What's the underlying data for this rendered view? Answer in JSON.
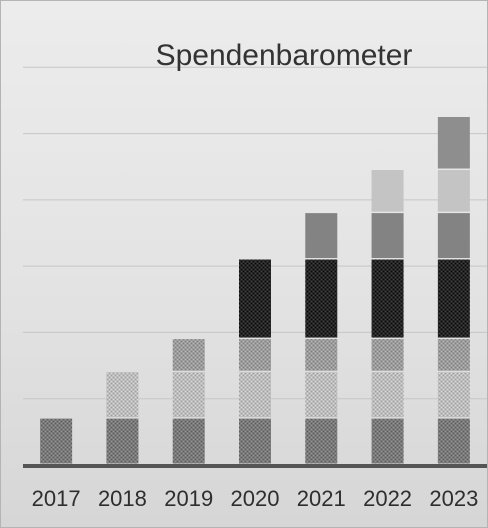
{
  "chart_data": {
    "type": "bar",
    "stacked": true,
    "title": "Spendenbarometer",
    "xlabel": "",
    "ylabel": "",
    "categories": [
      "2017",
      "2018",
      "2019",
      "2020",
      "2021",
      "2022",
      "2023"
    ],
    "ylim": [
      0,
      7
    ],
    "grid": true,
    "legend": "none",
    "y_tick_labels_shown": false,
    "series": [
      {
        "values": [
          0.7,
          0.7,
          0.7,
          0.7,
          0.7,
          0.7,
          0.7
        ],
        "color": "#7a7a7a",
        "pattern": "dots-medium"
      },
      {
        "values": [
          0,
          0.7,
          0.7,
          0.7,
          0.7,
          0.7,
          0.7
        ],
        "color": "#bdbdbd",
        "pattern": "dots-light"
      },
      {
        "values": [
          0,
          0,
          0.5,
          0.5,
          0.5,
          0.5,
          0.5
        ],
        "color": "#9c9c9c",
        "pattern": "dots-mid-light"
      },
      {
        "values": [
          0,
          0,
          0,
          1.2,
          1.2,
          1.2,
          1.2
        ],
        "color": "#262626",
        "pattern": "dots-dark"
      },
      {
        "values": [
          0,
          0,
          0,
          0,
          0.7,
          0.7,
          0.7
        ],
        "color": "#838383",
        "pattern": "solid"
      },
      {
        "values": [
          0,
          0,
          0,
          0,
          0,
          0.65,
          0.65
        ],
        "color": "#c4c4c4",
        "pattern": "solid"
      },
      {
        "values": [
          0,
          0,
          0,
          0,
          0,
          0,
          0.8
        ],
        "color": "#8e8e8e",
        "pattern": "solid"
      }
    ]
  }
}
